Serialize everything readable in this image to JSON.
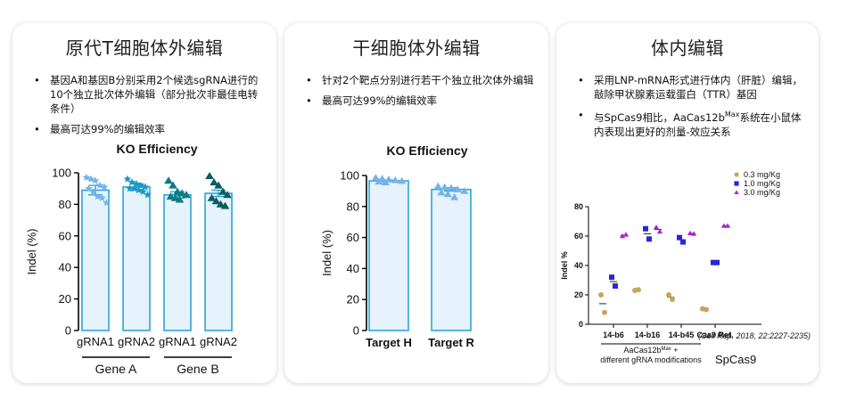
{
  "cards": [
    {
      "title": "原代T细胞体外编辑",
      "bullets": [
        "基因A和基因B分别采用2个候选sgRNA进行的10个独立批次体外编辑（部分批次非最佳电转条件）",
        "最高可达99%的编辑效率"
      ]
    },
    {
      "title": "干细胞体外编辑",
      "bullets": [
        "针对2个靶点分别进行若干个独立批次体外编辑",
        "最高可达99%的编辑效率"
      ]
    },
    {
      "title": "体内编辑",
      "bullets": [
        "采用LNP-mRNA形式进行体内（肝脏）编辑，敲除甲状腺素运载蛋白（TTR）基因",
        {
          "prefix": "与SpCas9相比，AaCas12b",
          "sup": "Max",
          "suffix": "系统在小鼠体内表现出更好的剂量-效应关系"
        }
      ]
    }
  ],
  "chart_data": [
    {
      "type": "bar",
      "title": "KO Efficiency",
      "ylabel": "Indel (%)",
      "ylim": [
        0,
        100
      ],
      "yticks": [
        0,
        20,
        40,
        60,
        80,
        100
      ],
      "categories": [
        "gRNA1",
        "gRNA2",
        "gRNA1",
        "gRNA2"
      ],
      "groups": [
        {
          "label": "Gene A",
          "members": [
            0,
            1
          ]
        },
        {
          "label": "Gene B",
          "members": [
            2,
            3
          ]
        }
      ],
      "values": [
        89,
        91,
        86,
        87
      ],
      "errors": [
        3,
        2,
        2,
        2
      ],
      "colors": [
        "#74b4e8",
        "#1a9ac0",
        "#0b7b84",
        "#0b5c62"
      ],
      "markers": [
        "star",
        "star",
        "triangle",
        "triangle"
      ],
      "points": [
        [
          97,
          96,
          95,
          92,
          91,
          90,
          88,
          85,
          84,
          81
        ],
        [
          96,
          94,
          93,
          92,
          91,
          90,
          90,
          89,
          88,
          86
        ],
        [
          95,
          92,
          88,
          87,
          86,
          85,
          84,
          83
        ],
        [
          98,
          94,
          92,
          88,
          86,
          84,
          82,
          80,
          79
        ]
      ]
    },
    {
      "type": "bar",
      "title": "KO Efficiency",
      "ylabel": "Indel (%)",
      "ylim": [
        0,
        100
      ],
      "yticks": [
        0,
        20,
        40,
        60,
        80,
        100
      ],
      "categories": [
        "Target H",
        "Target R"
      ],
      "values": [
        96.5,
        91
      ],
      "errors": [
        0.5,
        1
      ],
      "colors": [
        "#74b4e8",
        "#74b4e8"
      ],
      "markers": [
        "triangle",
        "triangle"
      ],
      "points": [
        [
          98.5,
          98,
          97.5,
          97,
          96.5,
          96,
          95.5
        ],
        [
          93,
          92.5,
          92,
          91,
          90,
          89,
          88,
          86
        ]
      ]
    },
    {
      "type": "scatter",
      "ylabel": "Indel %",
      "ylim": [
        0,
        80
      ],
      "yticks": [
        0,
        20,
        40,
        60,
        80
      ],
      "categories": [
        "14-b6",
        "14-b16",
        "14-b45",
        "Cas9 Ref."
      ],
      "group_label": {
        "prefix": "AaCas12b",
        "sup": "Max",
        "suffix": " +",
        "line2": "different gRNA modifications"
      },
      "spcas9_label": "SpCas9",
      "reference": "(Cell Rep. 2018, 22:2227-2235)",
      "series": [
        {
          "name": "0.3 mg/Kg",
          "color": "#c9a45c",
          "marker": "circle",
          "values": [
            [
              20,
              8
            ],
            [
              23,
              23.5
            ],
            [
              20,
              17
            ],
            [
              10.5,
              10
            ]
          ]
        },
        {
          "name": "1.0 mg/Kg",
          "color": "#2727d8",
          "marker": "square",
          "values": [
            [
              32,
              26
            ],
            [
              65,
              58
            ],
            [
              59,
              56
            ],
            [
              42,
              42
            ]
          ]
        },
        {
          "name": "3.0 mg/Kg",
          "color": "#b122d6",
          "marker": "triangle",
          "values": [
            [
              60,
              61
            ],
            [
              66,
              63
            ],
            [
              62,
              61.5
            ],
            [
              67,
              67
            ]
          ]
        }
      ]
    }
  ]
}
